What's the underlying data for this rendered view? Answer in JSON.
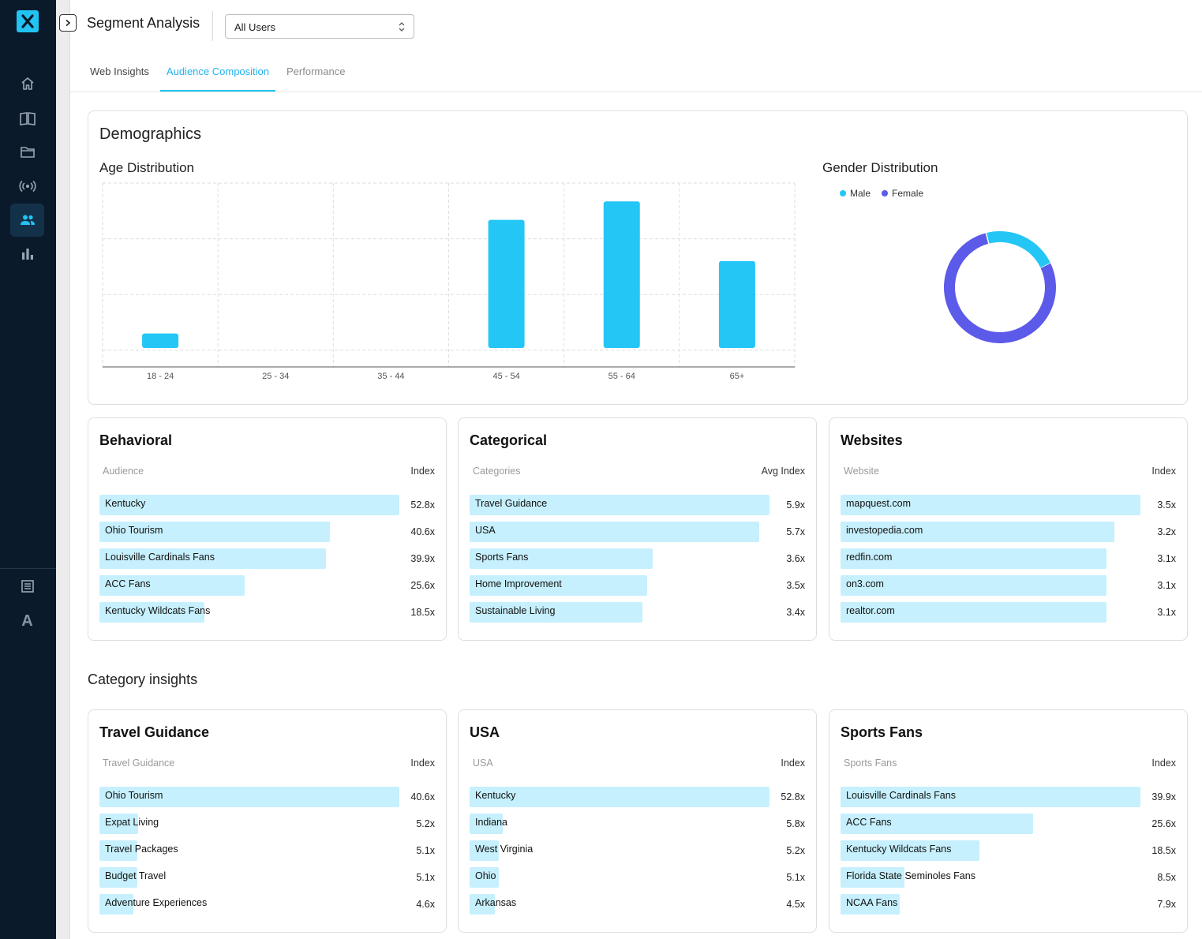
{
  "app": {
    "title": "Segment Analysis",
    "segment_select": {
      "value": "All Users"
    },
    "tabs": [
      {
        "label": "Web Insights"
      },
      {
        "label": "Audience Composition"
      },
      {
        "label": "Performance"
      }
    ],
    "active_tab": "Audience Composition"
  },
  "sidebar": {
    "logo_icon": "x-logo-icon",
    "items": [
      {
        "icon": "home-icon"
      },
      {
        "icon": "book-icon"
      },
      {
        "icon": "folder-icon"
      },
      {
        "icon": "broadcast-icon"
      },
      {
        "icon": "users-icon",
        "active": true
      },
      {
        "icon": "bar-chart-icon"
      }
    ],
    "bottom_items": [
      {
        "icon": "document-list-icon"
      }
    ],
    "avatar_letter": "A"
  },
  "demographics": {
    "title": "Demographics",
    "age": {
      "title": "Age Distribution"
    },
    "gender": {
      "title": "Gender Distribution",
      "legend": [
        {
          "label": "Male",
          "color": "#24c6f5"
        },
        {
          "label": "Female",
          "color": "#5c5ae8"
        }
      ]
    }
  },
  "chart_data": [
    {
      "type": "bar",
      "title": "Age Distribution",
      "categories": [
        "18 - 24",
        "25 - 34",
        "35 - 44",
        "45 - 54",
        "55 - 64",
        "65+"
      ],
      "values": [
        2.6,
        0,
        0,
        23.0,
        26.3,
        15.6
      ],
      "ylim": [
        0,
        33
      ],
      "grid": true,
      "color": "#24c6f5"
    },
    {
      "type": "pie",
      "title": "Gender Distribution",
      "donut": true,
      "labels": [
        "Male",
        "Female"
      ],
      "values": [
        22,
        78
      ],
      "colors": [
        "#24c6f5",
        "#5c5ae8"
      ],
      "legend": "top-left"
    }
  ],
  "behavioral": {
    "title": "Behavioral",
    "col_left": "Audience",
    "col_right": "Index",
    "rows": [
      {
        "label": "Kentucky",
        "value": "52.8x",
        "score": 52.8
      },
      {
        "label": "Ohio Tourism",
        "value": "40.6x",
        "score": 40.6
      },
      {
        "label": "Louisville Cardinals Fans",
        "value": "39.9x",
        "score": 39.9
      },
      {
        "label": "ACC Fans",
        "value": "25.6x",
        "score": 25.6
      },
      {
        "label": "Kentucky Wildcats Fans",
        "value": "18.5x",
        "score": 18.5
      }
    ]
  },
  "categorical": {
    "title": "Categorical",
    "col_left": "Categories",
    "col_right": "Avg Index",
    "rows": [
      {
        "label": "Travel Guidance",
        "value": "5.9x",
        "score": 5.9
      },
      {
        "label": "USA",
        "value": "5.7x",
        "score": 5.7
      },
      {
        "label": "Sports Fans",
        "value": "3.6x",
        "score": 3.6
      },
      {
        "label": "Home Improvement",
        "value": "3.5x",
        "score": 3.5
      },
      {
        "label": "Sustainable Living",
        "value": "3.4x",
        "score": 3.4
      }
    ]
  },
  "websites": {
    "title": "Websites",
    "col_left": "Website",
    "col_right": "Index",
    "rows": [
      {
        "label": "mapquest.com",
        "value": "3.5x",
        "score": 3.5
      },
      {
        "label": "investopedia.com",
        "value": "3.2x",
        "score": 3.2
      },
      {
        "label": "redfin.com",
        "value": "3.1x",
        "score": 3.1
      },
      {
        "label": "on3.com",
        "value": "3.1x",
        "score": 3.1
      },
      {
        "label": "realtor.com",
        "value": "3.1x",
        "score": 3.1
      }
    ]
  },
  "category_insights": {
    "title": "Category insights",
    "cards": [
      {
        "title": "Travel Guidance",
        "col_left": "Travel Guidance",
        "col_right": "Index",
        "rows": [
          {
            "label": "Ohio Tourism",
            "value": "40.6x",
            "score": 40.6
          },
          {
            "label": "Expat Living",
            "value": "5.2x",
            "score": 5.2
          },
          {
            "label": "Travel Packages",
            "value": "5.1x",
            "score": 5.1
          },
          {
            "label": "Budget Travel",
            "value": "5.1x",
            "score": 5.1
          },
          {
            "label": "Adventure Experiences",
            "value": "4.6x",
            "score": 4.6
          }
        ]
      },
      {
        "title": "USA",
        "col_left": "USA",
        "col_right": "Index",
        "rows": [
          {
            "label": "Kentucky",
            "value": "52.8x",
            "score": 52.8
          },
          {
            "label": "Indiana",
            "value": "5.8x",
            "score": 5.8
          },
          {
            "label": "West Virginia",
            "value": "5.2x",
            "score": 5.2
          },
          {
            "label": "Ohio",
            "value": "5.1x",
            "score": 5.1
          },
          {
            "label": "Arkansas",
            "value": "4.5x",
            "score": 4.5
          }
        ]
      },
      {
        "title": "Sports Fans",
        "col_left": "Sports Fans",
        "col_right": "Index",
        "rows": [
          {
            "label": "Louisville Cardinals Fans",
            "value": "39.9x",
            "score": 39.9
          },
          {
            "label": "ACC Fans",
            "value": "25.6x",
            "score": 25.6
          },
          {
            "label": "Kentucky Wildcats Fans",
            "value": "18.5x",
            "score": 18.5
          },
          {
            "label": "Florida State Seminoles Fans",
            "value": "8.5x",
            "score": 8.5
          },
          {
            "label": "NCAA Fans",
            "value": "7.9x",
            "score": 7.9
          }
        ]
      }
    ]
  }
}
